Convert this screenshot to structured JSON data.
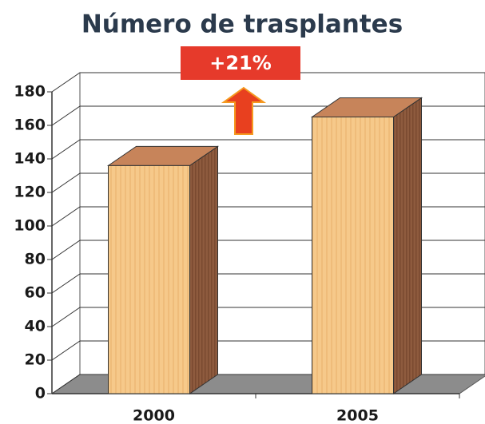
{
  "chart_data": {
    "type": "bar",
    "title": "Número de trasplantes",
    "categories": [
      "2000",
      "2005"
    ],
    "values": [
      136,
      165
    ],
    "ylim": [
      0,
      180
    ],
    "yticks": [
      0,
      20,
      40,
      60,
      80,
      100,
      120,
      140,
      160,
      180
    ],
    "grid": true,
    "annotation": "+21%",
    "color": "#f6c98a"
  }
}
